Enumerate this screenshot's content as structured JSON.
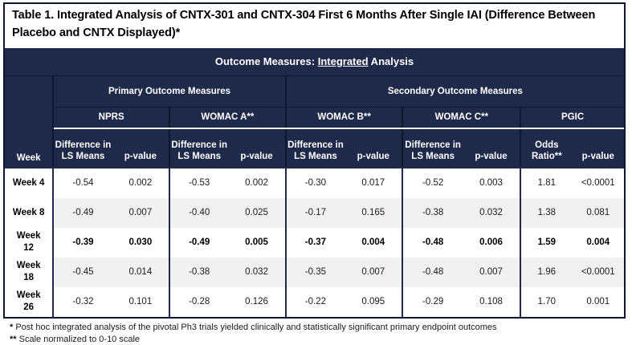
{
  "title": "Table 1. Integrated Analysis of CNTX-301 and CNTX-304 First 6 Months After Single IAI (Difference Between Placebo and CNTX Displayed)*",
  "banner": {
    "prefix": "Outcome Measures: ",
    "underlined": "Integrated",
    "suffix": " Analysis"
  },
  "colors": {
    "navy": "#1F2A4A",
    "grid_dark": "#0E1730",
    "stripe_gray": "#F1F1F1",
    "text_white": "#FFFFFF",
    "text_black": "#000000"
  },
  "header": {
    "week_label": "Week",
    "groups": [
      {
        "label": "Primary Outcome Measures",
        "span": 4
      },
      {
        "label": "Secondary Outcome Measures",
        "span": 6
      }
    ],
    "measures": [
      {
        "label": "NPRS",
        "value_header": [
          "Difference in",
          "LS Means"
        ],
        "p_header": "p-value"
      },
      {
        "label": "WOMAC A**",
        "value_header": [
          "Difference in",
          "LS Means"
        ],
        "p_header": "p-value"
      },
      {
        "label": "WOMAC B**",
        "value_header": [
          "Difference in",
          "LS Means"
        ],
        "p_header": "p-value"
      },
      {
        "label": "WOMAC C**",
        "value_header": [
          "Difference in",
          "LS Means"
        ],
        "p_header": "p-value"
      },
      {
        "label": "PGIC",
        "value_header": [
          "Odds",
          "Ratio**"
        ],
        "p_header": "p-value"
      }
    ]
  },
  "rows": [
    {
      "week": "Week 4",
      "bold": false,
      "striped": false,
      "values": [
        "-0.54",
        "0.002",
        "-0.53",
        "0.002",
        "-0.30",
        "0.017",
        "-0.52",
        "0.003",
        "1.81",
        "<0.0001"
      ]
    },
    {
      "week": "Week 8",
      "bold": false,
      "striped": true,
      "values": [
        "-0.49",
        "0.007",
        "-0.40",
        "0.025",
        "-0.17",
        "0.165",
        "-0.38",
        "0.032",
        "1.38",
        "0.081"
      ]
    },
    {
      "week": "Week 12",
      "bold": true,
      "striped": false,
      "values": [
        "-0.39",
        "0.030",
        "-0.49",
        "0.005",
        "-0.37",
        "0.004",
        "-0.48",
        "0.006",
        "1.59",
        "0.004"
      ]
    },
    {
      "week": "Week 18",
      "bold": false,
      "striped": true,
      "values": [
        "-0.45",
        "0.014",
        "-0.38",
        "0.032",
        "-0.35",
        "0.007",
        "-0.48",
        "0.007",
        "1.96",
        "<0.0001"
      ]
    },
    {
      "week": "Week 26",
      "bold": false,
      "striped": false,
      "values": [
        "-0.32",
        "0.101",
        "-0.28",
        "0.126",
        "-0.22",
        "0.095",
        "-0.29",
        "0.108",
        "1.70",
        "0.001"
      ]
    }
  ],
  "footnotes": [
    {
      "marker": "*",
      "text": "Post hoc integrated analysis of the pivotal Ph3 trials yielded clinically and statistically significant primary endpoint outcomes"
    },
    {
      "marker": "**",
      "text": "Scale normalized to 0-10 scale"
    }
  ]
}
